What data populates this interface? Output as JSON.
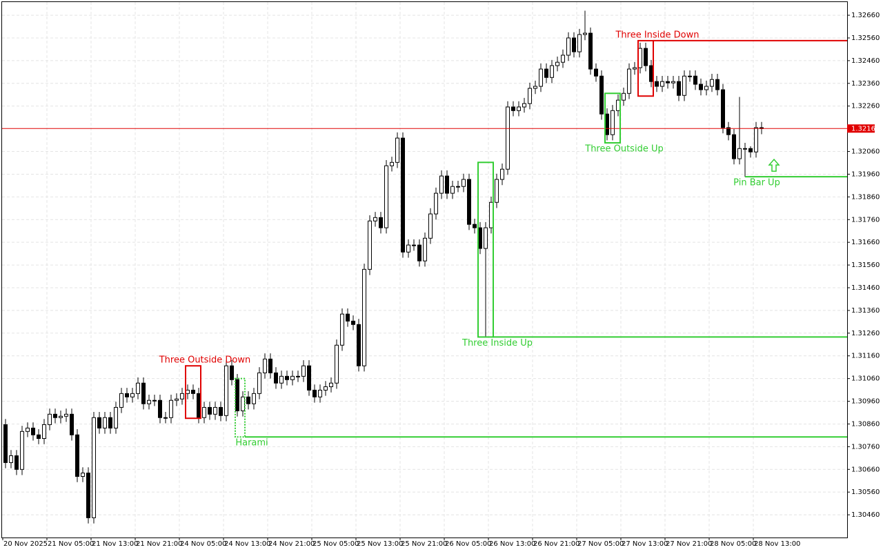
{
  "chart_data": {
    "type": "candlestick",
    "open": [
      1.30857,
      1.3069,
      1.3072,
      1.3066,
      1.30827,
      1.30842,
      1.30812,
      1.30796,
      1.30857,
      1.30903,
      1.30888,
      1.30894,
      1.30903,
      1.30812,
      1.30629,
      1.30644,
      1.30447,
      1.30888,
      1.30842,
      1.30888,
      1.30842,
      1.30933,
      1.30994,
      1.30979,
      1.30994,
      1.3104,
      1.30949,
      1.30964,
      1.30964,
      1.30888,
      1.30888,
      1.30964,
      1.3097,
      1.30994,
      1.31009,
      1.30994,
      1.30888,
      1.30933,
      1.30903,
      1.30933,
      1.30897,
      1.31116,
      1.31055,
      1.30918,
      1.30979,
      1.30949,
      1.30994,
      1.31085,
      1.31146,
      1.31085,
      1.3104,
      1.3107,
      1.31055,
      1.3107,
      1.3107,
      1.31116,
      1.31009,
      1.30979,
      1.31009,
      1.31024,
      1.3104,
      1.31207,
      1.31344,
      1.31313,
      1.31298,
      1.31116,
      1.31541,
      1.31754,
      1.31769,
      1.31724,
      1.31997,
      1.32012,
      1.32119,
      1.31617,
      1.31648,
      1.31648,
      1.31578,
      1.31678,
      1.31785,
      1.31876,
      1.31952,
      1.31876,
      1.31906,
      1.31906,
      1.31937,
      1.31739,
      1.31724,
      1.31633,
      1.31724,
      1.31836,
      1.31937,
      1.31982,
      1.32256,
      1.3224,
      1.32256,
      1.32271,
      1.32338,
      1.32347,
      1.32423,
      1.32386,
      1.32438,
      1.32453,
      1.32484,
      1.3256,
      1.32499,
      1.32575,
      1.32581,
      1.32423,
      1.32392,
      1.32225,
      1.32134,
      1.3224,
      1.32286,
      1.32316,
      1.32423,
      1.32429,
      1.32514,
      1.32438,
      1.32368,
      1.32347,
      1.32368,
      1.32362,
      1.32368,
      1.32307,
      1.32392,
      1.32392,
      1.32356,
      1.32332,
      1.32347,
      1.32377,
      1.32332,
      1.32165,
      1.32134,
      1.32028,
      1.32073,
      1.32073,
      1.32058,
      1.32165
    ],
    "high": [
      1.30882,
      1.30745,
      1.30745,
      1.30852,
      1.30867,
      1.30867,
      1.30837,
      1.30882,
      1.30928,
      1.30928,
      1.30919,
      1.30928,
      1.30928,
      1.30837,
      1.30669,
      1.30669,
      1.30913,
      1.30913,
      1.30913,
      1.30913,
      1.30958,
      1.31019,
      1.31019,
      1.31019,
      1.31065,
      1.31065,
      1.30989,
      1.30989,
      1.30989,
      1.30913,
      1.30989,
      1.30995,
      1.31019,
      1.31034,
      1.31034,
      1.31019,
      1.30958,
      1.30958,
      1.30958,
      1.30958,
      1.31141,
      1.31141,
      1.3108,
      1.31004,
      1.31004,
      1.31019,
      1.3111,
      1.31171,
      1.31171,
      1.3111,
      1.31095,
      1.31095,
      1.31095,
      1.31095,
      1.31141,
      1.31141,
      1.31034,
      1.31034,
      1.31049,
      1.31065,
      1.31232,
      1.31369,
      1.31369,
      1.31338,
      1.31323,
      1.31566,
      1.31779,
      1.31794,
      1.31794,
      1.32022,
      1.32037,
      1.32144,
      1.32144,
      1.31673,
      1.31673,
      1.31673,
      1.31703,
      1.3181,
      1.31901,
      1.31977,
      1.31977,
      1.31931,
      1.31931,
      1.31962,
      1.31962,
      1.31764,
      1.31749,
      1.31749,
      1.31861,
      1.31962,
      1.32007,
      1.32281,
      1.32281,
      1.32281,
      1.32296,
      1.32363,
      1.32372,
      1.32448,
      1.32448,
      1.32463,
      1.32478,
      1.32509,
      1.32585,
      1.32585,
      1.326,
      1.3268,
      1.32606,
      1.32448,
      1.32417,
      1.3225,
      1.32265,
      1.32311,
      1.32341,
      1.32448,
      1.32454,
      1.32539,
      1.32539,
      1.32463,
      1.32393,
      1.32393,
      1.32393,
      1.32393,
      1.32393,
      1.32417,
      1.32417,
      1.32417,
      1.32381,
      1.32372,
      1.32402,
      1.32402,
      1.32357,
      1.3219,
      1.32159,
      1.323,
      1.32098,
      1.32083,
      1.3219,
      1.3219
    ],
    "low": [
      1.30665,
      1.30665,
      1.30635,
      1.30635,
      1.30802,
      1.30787,
      1.30771,
      1.30771,
      1.30832,
      1.30863,
      1.30863,
      1.30869,
      1.30787,
      1.30604,
      1.30604,
      1.30422,
      1.30422,
      1.30817,
      1.30817,
      1.30817,
      1.30817,
      1.30908,
      1.30954,
      1.30954,
      1.30969,
      1.30924,
      1.30924,
      1.30939,
      1.30863,
      1.30863,
      1.30863,
      1.30939,
      1.30945,
      1.30969,
      1.30969,
      1.30863,
      1.30863,
      1.30878,
      1.30878,
      1.30872,
      1.30872,
      1.3103,
      1.30893,
      1.30893,
      1.30924,
      1.30924,
      1.30969,
      1.3106,
      1.3106,
      1.31015,
      1.31015,
      1.3103,
      1.3103,
      1.31045,
      1.31045,
      1.30984,
      1.30954,
      1.30954,
      1.30984,
      1.30999,
      1.31015,
      1.31182,
      1.31288,
      1.31273,
      1.31091,
      1.31091,
      1.31516,
      1.31729,
      1.31699,
      1.31699,
      1.31972,
      1.31987,
      1.31592,
      1.31592,
      1.31623,
      1.31553,
      1.31553,
      1.31653,
      1.3176,
      1.31851,
      1.31851,
      1.31851,
      1.31881,
      1.31881,
      1.31714,
      1.31699,
      1.31608,
      1.31243,
      1.31699,
      1.31811,
      1.31912,
      1.31957,
      1.32215,
      1.32215,
      1.32231,
      1.32246,
      1.32313,
      1.32322,
      1.32361,
      1.32361,
      1.32413,
      1.32428,
      1.32459,
      1.32474,
      1.32474,
      1.3255,
      1.32398,
      1.32367,
      1.322,
      1.32109,
      1.32109,
      1.32215,
      1.32261,
      1.32291,
      1.32398,
      1.32404,
      1.32413,
      1.32343,
      1.32322,
      1.32322,
      1.32337,
      1.32337,
      1.32282,
      1.32282,
      1.32367,
      1.32331,
      1.32307,
      1.32307,
      1.32322,
      1.32307,
      1.3214,
      1.32109,
      1.32003,
      1.32003,
      1.31948,
      1.32033,
      1.32033,
      1.32136
    ],
    "close": [
      1.3069,
      1.3072,
      1.3066,
      1.30827,
      1.30842,
      1.30812,
      1.30796,
      1.30857,
      1.30903,
      1.30888,
      1.30894,
      1.30903,
      1.30812,
      1.30629,
      1.30644,
      1.30447,
      1.30888,
      1.30842,
      1.30888,
      1.30842,
      1.30933,
      1.30994,
      1.30979,
      1.30994,
      1.3104,
      1.30949,
      1.30964,
      1.30964,
      1.30888,
      1.30888,
      1.30964,
      1.3097,
      1.30994,
      1.31009,
      1.30994,
      1.30888,
      1.30933,
      1.30903,
      1.30933,
      1.30897,
      1.31116,
      1.31055,
      1.30918,
      1.30979,
      1.30949,
      1.30994,
      1.31085,
      1.31146,
      1.31085,
      1.3104,
      1.3107,
      1.31055,
      1.3107,
      1.3107,
      1.31116,
      1.31009,
      1.30979,
      1.31009,
      1.31024,
      1.3104,
      1.31207,
      1.31344,
      1.31313,
      1.31298,
      1.31116,
      1.31541,
      1.31754,
      1.31769,
      1.31724,
      1.31997,
      1.32012,
      1.32119,
      1.31617,
      1.31648,
      1.31648,
      1.31578,
      1.31678,
      1.31785,
      1.31876,
      1.31952,
      1.31876,
      1.31906,
      1.31906,
      1.31937,
      1.31739,
      1.31724,
      1.31633,
      1.31724,
      1.31836,
      1.31937,
      1.31982,
      1.32256,
      1.3224,
      1.32256,
      1.32271,
      1.32338,
      1.32347,
      1.32423,
      1.32386,
      1.32438,
      1.32453,
      1.32484,
      1.3256,
      1.32499,
      1.32575,
      1.32581,
      1.32423,
      1.32392,
      1.32225,
      1.32134,
      1.3224,
      1.32286,
      1.32316,
      1.32423,
      1.32429,
      1.32514,
      1.32438,
      1.32368,
      1.32347,
      1.32368,
      1.32362,
      1.32368,
      1.32307,
      1.32392,
      1.32392,
      1.32356,
      1.32332,
      1.32347,
      1.32377,
      1.32332,
      1.32165,
      1.32134,
      1.32028,
      1.32073,
      1.32073,
      1.32058,
      1.32165,
      1.32161
    ],
    "x_labels": [
      "20 Nov 2025",
      "21 Nov 05:00",
      "21 Nov 13:00",
      "21 Nov 21:00",
      "24 Nov 05:00",
      "24 Nov 13:00",
      "24 Nov 21:00",
      "25 Nov 05:00",
      "25 Nov 13:00",
      "25 Nov 21:00",
      "26 Nov 05:00",
      "26 Nov 13:00",
      "26 Nov 21:00",
      "27 Nov 05:00",
      "27 Nov 13:00",
      "27 Nov 21:00",
      "28 Nov 05:00",
      "28 Nov 13:00"
    ],
    "ylim": [
      1.3036,
      1.32721
    ],
    "yticks": [
      {
        "value": 1.3266,
        "label": "1.32660"
      },
      {
        "value": 1.3256,
        "label": "1.32560"
      },
      {
        "value": 1.3246,
        "label": "1.32460"
      },
      {
        "value": 1.3236,
        "label": "1.32360"
      },
      {
        "value": 1.3226,
        "label": "1.32260"
      },
      {
        "value": 1.3206,
        "label": "1.32060"
      },
      {
        "value": 1.3196,
        "label": "1.31960"
      },
      {
        "value": 1.3186,
        "label": "1.31860"
      },
      {
        "value": 1.3176,
        "label": "1.31760"
      },
      {
        "value": 1.3166,
        "label": "1.31660"
      },
      {
        "value": 1.3156,
        "label": "1.31560"
      },
      {
        "value": 1.3146,
        "label": "1.31460"
      },
      {
        "value": 1.3136,
        "label": "1.31360"
      },
      {
        "value": 1.3126,
        "label": "1.31260"
      },
      {
        "value": 1.3116,
        "label": "1.31160"
      },
      {
        "value": 1.3106,
        "label": "1.31060"
      },
      {
        "value": 1.3096,
        "label": "1.30960"
      },
      {
        "value": 1.3086,
        "label": "1.30860"
      },
      {
        "value": 1.3076,
        "label": "1.30760"
      },
      {
        "value": 1.3066,
        "label": "1.30660"
      },
      {
        "value": 1.3056,
        "label": "1.30560"
      },
      {
        "value": 1.3046,
        "label": "1.30460"
      }
    ],
    "grid": true,
    "current_price": 1.32161,
    "current_price_color": "#e00000",
    "patterns": [
      {
        "label": "Three Outside Down",
        "color": "#e00000",
        "start": 33,
        "end": 35,
        "box": [
          1.31116,
          1.30885
        ]
      },
      {
        "label": "Harami",
        "color": "#32cd32",
        "start": 42,
        "end": 43,
        "box": [
          1.3106,
          1.30803
        ],
        "level": 1.30803
      },
      {
        "label": "Three Inside Up",
        "color": "#32cd32",
        "start": 86,
        "end": 88,
        "box": [
          1.32012,
          1.31243
        ],
        "level": 1.31243
      },
      {
        "label": "Three Outside Up",
        "color": "#32cd32",
        "start": 109,
        "end": 111,
        "box": [
          1.32316,
          1.32098
        ]
      },
      {
        "label": "Three Inside Down",
        "color": "#e00000",
        "start": 115,
        "end": 117,
        "box": [
          1.32548,
          1.32304
        ],
        "level": 1.32548
      },
      {
        "label": "Pin Bar Up",
        "color": "#32cd32",
        "start": 134,
        "end": 134,
        "level": 1.31949
      }
    ]
  }
}
